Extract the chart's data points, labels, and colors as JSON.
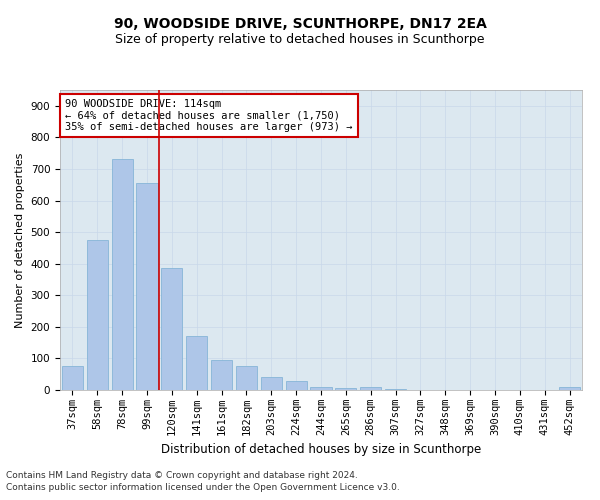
{
  "title": "90, WOODSIDE DRIVE, SCUNTHORPE, DN17 2EA",
  "subtitle": "Size of property relative to detached houses in Scunthorpe",
  "xlabel": "Distribution of detached houses by size in Scunthorpe",
  "ylabel": "Number of detached properties",
  "categories": [
    "37sqm",
    "58sqm",
    "78sqm",
    "99sqm",
    "120sqm",
    "141sqm",
    "161sqm",
    "182sqm",
    "203sqm",
    "224sqm",
    "244sqm",
    "265sqm",
    "286sqm",
    "307sqm",
    "327sqm",
    "348sqm",
    "369sqm",
    "390sqm",
    "410sqm",
    "431sqm",
    "452sqm"
  ],
  "values": [
    75,
    475,
    730,
    655,
    385,
    170,
    95,
    75,
    42,
    30,
    10,
    7,
    10,
    3,
    0,
    0,
    0,
    0,
    0,
    0,
    8
  ],
  "bar_color": "#aec6e8",
  "bar_edgecolor": "#7aafd4",
  "bar_linewidth": 0.5,
  "vline_x": 3.5,
  "vline_color": "#cc0000",
  "vline_linewidth": 1.2,
  "annotation_text": "90 WOODSIDE DRIVE: 114sqm\n← 64% of detached houses are smaller (1,750)\n35% of semi-detached houses are larger (973) →",
  "annotation_box_facecolor": "#ffffff",
  "annotation_box_edgecolor": "#cc0000",
  "ylim": [
    0,
    950
  ],
  "yticks": [
    0,
    100,
    200,
    300,
    400,
    500,
    600,
    700,
    800,
    900
  ],
  "grid_color": "#c8d8ea",
  "background_color": "#dce8f0",
  "footer_line1": "Contains HM Land Registry data © Crown copyright and database right 2024.",
  "footer_line2": "Contains public sector information licensed under the Open Government Licence v3.0.",
  "title_fontsize": 10,
  "subtitle_fontsize": 9,
  "xlabel_fontsize": 8.5,
  "ylabel_fontsize": 8,
  "tick_fontsize": 7.5,
  "annotation_fontsize": 7.5,
  "footer_fontsize": 6.5
}
